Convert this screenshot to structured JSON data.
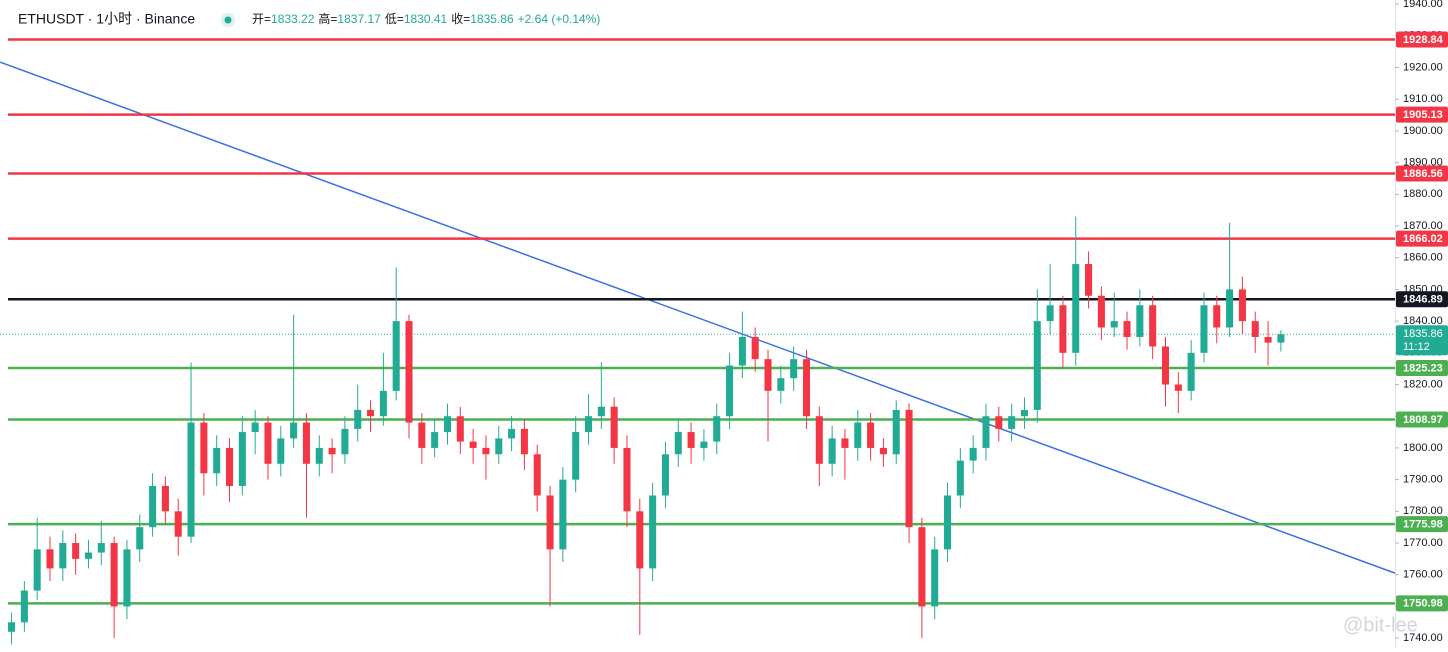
{
  "chart_data": {
    "type": "candlestick",
    "title": "ETHUSDT · 1小时 · Binance",
    "ohlc_legend": {
      "labels": [
        "开=",
        "高=",
        "低=",
        "收="
      ],
      "values": [
        1833.22,
        1837.17,
        1830.41,
        1835.86
      ],
      "change": "+2.64 (+0.14%)"
    },
    "up_color": "#22ab94",
    "down_color": "#f23645",
    "xlim": [
      -0.9,
      107.9
    ],
    "ylim": [
      1737.2,
      1941.3
    ],
    "yticks": [
      {
        "value": 1740,
        "label": "1740.00"
      },
      {
        "value": 1750,
        "label": "1750.00"
      },
      {
        "value": 1760,
        "label": "1760.00"
      },
      {
        "value": 1770,
        "label": "1770.00"
      },
      {
        "value": 1780,
        "label": "1780.00"
      },
      {
        "value": 1790,
        "label": "1790.00"
      },
      {
        "value": 1800,
        "label": "1800.00"
      },
      {
        "value": 1810,
        "label": "1810.00"
      },
      {
        "value": 1820,
        "label": "1820.00"
      },
      {
        "value": 1830,
        "label": "1830.00"
      },
      {
        "value": 1840,
        "label": "1840.00"
      },
      {
        "value": 1850,
        "label": "1850.00"
      },
      {
        "value": 1860,
        "label": "1860.00"
      },
      {
        "value": 1870,
        "label": "1870.00"
      },
      {
        "value": 1880,
        "label": "1880.00"
      },
      {
        "value": 1890,
        "label": "1890.00"
      },
      {
        "value": 1900,
        "label": "1900.00"
      },
      {
        "value": 1910,
        "label": "1910.00"
      },
      {
        "value": 1920,
        "label": "1920.00"
      },
      {
        "value": 1930,
        "label": "1930.00"
      },
      {
        "value": 1940,
        "label": "1940.00"
      }
    ],
    "levels": [
      {
        "value": 1928.84,
        "color": "#f23645"
      },
      {
        "value": 1905.13,
        "color": "#f23645"
      },
      {
        "value": 1886.56,
        "color": "#f23645"
      },
      {
        "value": 1866.02,
        "color": "#f23645"
      },
      {
        "value": 1846.89,
        "color": "#131722"
      },
      {
        "value": 1825.23,
        "color": "#4caf50"
      },
      {
        "value": 1808.97,
        "color": "#4caf50"
      },
      {
        "value": 1775.98,
        "color": "#4caf50"
      },
      {
        "value": 1750.98,
        "color": "#4caf50"
      }
    ],
    "last_price": {
      "value": 1835.86,
      "countdown": "11:12",
      "color": "#22ab94"
    },
    "trendline": {
      "x": [
        -0.9,
        107.9
      ],
      "y": [
        1921.7,
        1760.5
      ],
      "color": "#3d6fe8"
    },
    "watermark": "@bit-lee",
    "candles": [
      [
        1742,
        1748,
        1738,
        1745
      ],
      [
        1745,
        1758,
        1742,
        1755
      ],
      [
        1755,
        1778,
        1752,
        1768
      ],
      [
        1768,
        1772,
        1758,
        1762
      ],
      [
        1762,
        1774,
        1758,
        1770
      ],
      [
        1770,
        1773,
        1760,
        1765
      ],
      [
        1765,
        1771,
        1762,
        1767
      ],
      [
        1767,
        1777,
        1763,
        1770
      ],
      [
        1770,
        1772,
        1740,
        1750
      ],
      [
        1750,
        1771,
        1746,
        1768
      ],
      [
        1768,
        1779,
        1764,
        1775
      ],
      [
        1775,
        1792,
        1772,
        1788
      ],
      [
        1788,
        1791,
        1776,
        1780
      ],
      [
        1780,
        1784,
        1766,
        1772
      ],
      [
        1772,
        1827,
        1770,
        1808
      ],
      [
        1808,
        1811,
        1785,
        1792
      ],
      [
        1792,
        1804,
        1788,
        1800
      ],
      [
        1800,
        1803,
        1783,
        1788
      ],
      [
        1788,
        1810,
        1785,
        1805
      ],
      [
        1805,
        1812,
        1798,
        1808
      ],
      [
        1808,
        1810,
        1790,
        1795
      ],
      [
        1795,
        1807,
        1791,
        1803
      ],
      [
        1803,
        1842,
        1800,
        1808
      ],
      [
        1808,
        1811,
        1778,
        1795
      ],
      [
        1795,
        1804,
        1791,
        1800
      ],
      [
        1800,
        1803,
        1792,
        1798
      ],
      [
        1798,
        1810,
        1795,
        1806
      ],
      [
        1806,
        1820,
        1802,
        1812
      ],
      [
        1812,
        1815,
        1805,
        1810
      ],
      [
        1810,
        1830,
        1807,
        1818
      ],
      [
        1818,
        1857,
        1815,
        1840
      ],
      [
        1840,
        1842,
        1803,
        1808
      ],
      [
        1808,
        1811,
        1795,
        1800
      ],
      [
        1800,
        1809,
        1797,
        1805
      ],
      [
        1805,
        1814,
        1801,
        1810
      ],
      [
        1810,
        1813,
        1798,
        1802
      ],
      [
        1802,
        1806,
        1795,
        1800
      ],
      [
        1800,
        1804,
        1790,
        1798
      ],
      [
        1798,
        1807,
        1795,
        1803
      ],
      [
        1803,
        1810,
        1799,
        1806
      ],
      [
        1806,
        1809,
        1793,
        1798
      ],
      [
        1798,
        1801,
        1780,
        1785
      ],
      [
        1785,
        1788,
        1750,
        1768
      ],
      [
        1768,
        1794,
        1764,
        1790
      ],
      [
        1790,
        1810,
        1786,
        1805
      ],
      [
        1805,
        1817,
        1801,
        1810
      ],
      [
        1810,
        1827,
        1806,
        1813
      ],
      [
        1813,
        1816,
        1795,
        1800
      ],
      [
        1800,
        1804,
        1775,
        1780
      ],
      [
        1780,
        1784,
        1741,
        1762
      ],
      [
        1762,
        1789,
        1758,
        1785
      ],
      [
        1785,
        1802,
        1781,
        1798
      ],
      [
        1798,
        1809,
        1794,
        1805
      ],
      [
        1805,
        1808,
        1795,
        1800
      ],
      [
        1800,
        1806,
        1796,
        1802
      ],
      [
        1802,
        1814,
        1798,
        1810
      ],
      [
        1810,
        1830,
        1806,
        1826
      ],
      [
        1826,
        1843,
        1822,
        1835
      ],
      [
        1835,
        1838,
        1824,
        1828
      ],
      [
        1828,
        1831,
        1802,
        1818
      ],
      [
        1818,
        1826,
        1814,
        1822
      ],
      [
        1822,
        1832,
        1818,
        1828
      ],
      [
        1828,
        1831,
        1806,
        1810
      ],
      [
        1810,
        1813,
        1788,
        1795
      ],
      [
        1795,
        1807,
        1791,
        1803
      ],
      [
        1803,
        1806,
        1790,
        1800
      ],
      [
        1800,
        1812,
        1796,
        1808
      ],
      [
        1808,
        1811,
        1796,
        1800
      ],
      [
        1800,
        1803,
        1794,
        1798
      ],
      [
        1798,
        1815,
        1795,
        1812
      ],
      [
        1812,
        1814,
        1770,
        1775
      ],
      [
        1775,
        1778,
        1740,
        1750
      ],
      [
        1750,
        1772,
        1746,
        1768
      ],
      [
        1768,
        1789,
        1764,
        1785
      ],
      [
        1785,
        1800,
        1781,
        1796
      ],
      [
        1796,
        1804,
        1792,
        1800
      ],
      [
        1800,
        1814,
        1796,
        1810
      ],
      [
        1810,
        1813,
        1802,
        1806
      ],
      [
        1806,
        1814,
        1802,
        1810
      ],
      [
        1810,
        1816,
        1806,
        1812
      ],
      [
        1812,
        1850,
        1808,
        1840
      ],
      [
        1840,
        1858,
        1836,
        1845
      ],
      [
        1845,
        1848,
        1825,
        1830
      ],
      [
        1830,
        1873,
        1826,
        1858
      ],
      [
        1858,
        1862,
        1844,
        1848
      ],
      [
        1848,
        1851,
        1834,
        1838
      ],
      [
        1838,
        1849,
        1835,
        1840
      ],
      [
        1840,
        1843,
        1831,
        1835
      ],
      [
        1835,
        1850,
        1832,
        1845
      ],
      [
        1845,
        1848,
        1828,
        1832
      ],
      [
        1832,
        1835,
        1813,
        1820
      ],
      [
        1820,
        1824,
        1811,
        1818
      ],
      [
        1818,
        1834,
        1815,
        1830
      ],
      [
        1830,
        1849,
        1827,
        1845
      ],
      [
        1845,
        1848,
        1833,
        1838
      ],
      [
        1838,
        1871,
        1835,
        1850
      ],
      [
        1850,
        1854,
        1836,
        1840
      ],
      [
        1840,
        1843,
        1830,
        1835
      ],
      [
        1835,
        1840,
        1826,
        1833.22
      ],
      [
        1833.22,
        1837.17,
        1830.41,
        1835.86
      ]
    ]
  }
}
